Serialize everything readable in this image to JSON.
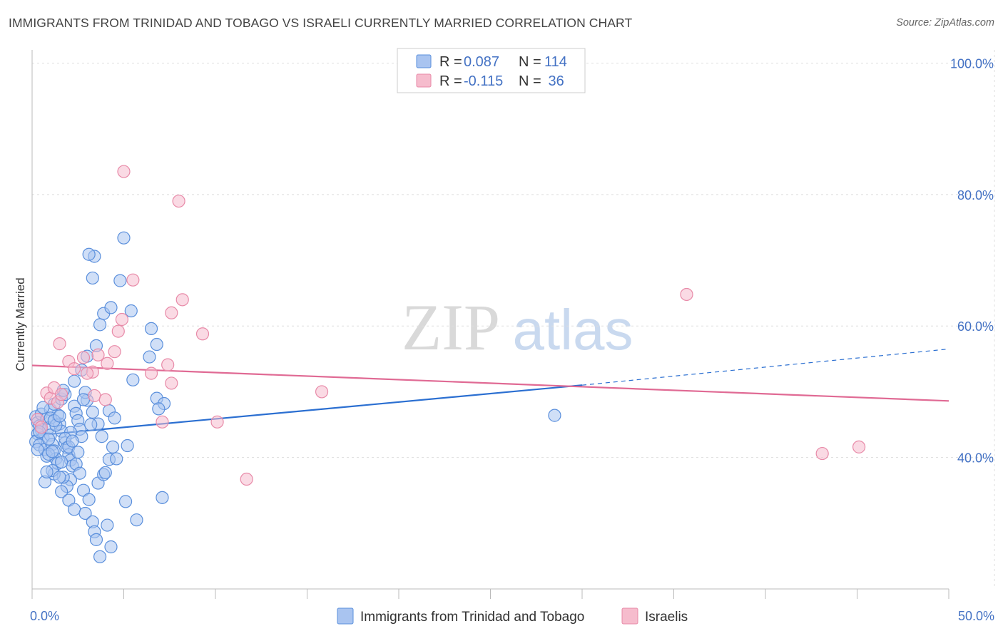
{
  "title": "IMMIGRANTS FROM TRINIDAD AND TOBAGO VS ISRAELI CURRENTLY MARRIED CORRELATION CHART",
  "source": "Source: ZipAtlas.com",
  "watermark": {
    "zip": "ZIP",
    "atlas": "atlas"
  },
  "colors": {
    "blue_fill": "#a9c4f0",
    "blue_stroke": "#5a8fdc",
    "blue_line": "#2b6fd1",
    "pink_fill": "#f6bccd",
    "pink_stroke": "#e88aa8",
    "pink_line": "#e06a94",
    "grid": "#dddddd",
    "axis_text": "#4472c4"
  },
  "legend": {
    "blue": {
      "r_label": "R = ",
      "r_value": "0.087",
      "n_label": "N = ",
      "n_value": "114"
    },
    "pink": {
      "r_label": "R = ",
      "r_value": "-0.115",
      "n_label": "N = ",
      "n_value": " 36"
    }
  },
  "chart_data": {
    "type": "scatter",
    "xlabel": "",
    "ylabel": "Currently Married",
    "xlim": [
      0,
      50
    ],
    "ylim": [
      20,
      102
    ],
    "x_tick_labels": [
      "0.0%",
      "50.0%"
    ],
    "y_tick_values": [
      40,
      60,
      80,
      100
    ],
    "y_tick_labels": [
      "40.0%",
      "60.0%",
      "80.0%",
      "100.0%"
    ],
    "series": [
      {
        "name": "Immigrants from Trinidad and Tobago",
        "color": "blue",
        "trend": {
          "x0": 0,
          "y0": 43.3,
          "x1": 30,
          "y1": 51.0,
          "dashed_to_x": 50,
          "dashed_to_y": 56.5
        },
        "points": [
          [
            0.2,
            46.2
          ],
          [
            0.3,
            45.3
          ],
          [
            0.4,
            44.8
          ],
          [
            0.5,
            44.2
          ],
          [
            0.3,
            43.6
          ],
          [
            0.6,
            43.0
          ],
          [
            0.2,
            42.4
          ],
          [
            0.4,
            41.9
          ],
          [
            0.7,
            41.2
          ],
          [
            0.5,
            46.6
          ],
          [
            0.8,
            45.9
          ],
          [
            0.9,
            44.5
          ],
          [
            1.0,
            43.4
          ],
          [
            1.1,
            42.0
          ],
          [
            1.2,
            41.0
          ],
          [
            0.8,
            40.2
          ],
          [
            1.3,
            39.8
          ],
          [
            1.4,
            46.5
          ],
          [
            1.5,
            45.1
          ],
          [
            1.6,
            44.0
          ],
          [
            1.0,
            47.3
          ],
          [
            1.2,
            48.1
          ],
          [
            1.6,
            48.9
          ],
          [
            1.8,
            49.6
          ],
          [
            1.7,
            50.2
          ],
          [
            1.8,
            42.2
          ],
          [
            1.9,
            41.5
          ],
          [
            2.0,
            40.4
          ],
          [
            2.1,
            39.6
          ],
          [
            2.2,
            38.7
          ],
          [
            2.3,
            47.8
          ],
          [
            2.4,
            46.7
          ],
          [
            2.5,
            45.6
          ],
          [
            2.6,
            44.3
          ],
          [
            2.7,
            43.2
          ],
          [
            2.4,
            39.0
          ],
          [
            2.6,
            37.6
          ],
          [
            2.1,
            36.6
          ],
          [
            1.9,
            35.6
          ],
          [
            1.7,
            37.0
          ],
          [
            1.2,
            37.5
          ],
          [
            1.6,
            34.8
          ],
          [
            2.0,
            33.5
          ],
          [
            2.3,
            32.1
          ],
          [
            2.9,
            31.5
          ],
          [
            3.3,
            30.2
          ],
          [
            3.4,
            28.7
          ],
          [
            3.5,
            27.5
          ],
          [
            3.7,
            24.9
          ],
          [
            2.8,
            35.0
          ],
          [
            3.1,
            33.6
          ],
          [
            3.6,
            36.1
          ],
          [
            3.9,
            37.4
          ],
          [
            4.2,
            39.7
          ],
          [
            4.4,
            41.6
          ],
          [
            3.8,
            43.2
          ],
          [
            3.6,
            45.1
          ],
          [
            3.3,
            46.9
          ],
          [
            3.0,
            48.7
          ],
          [
            2.9,
            49.9
          ],
          [
            2.3,
            51.6
          ],
          [
            2.7,
            53.3
          ],
          [
            3.0,
            55.4
          ],
          [
            3.5,
            57.0
          ],
          [
            3.7,
            60.2
          ],
          [
            3.9,
            61.9
          ],
          [
            4.3,
            62.8
          ],
          [
            3.3,
            67.3
          ],
          [
            3.4,
            70.6
          ],
          [
            3.1,
            70.9
          ],
          [
            5.0,
            73.4
          ],
          [
            4.8,
            66.9
          ],
          [
            5.4,
            62.3
          ],
          [
            6.5,
            59.6
          ],
          [
            6.8,
            57.2
          ],
          [
            6.4,
            55.3
          ],
          [
            5.5,
            51.8
          ],
          [
            6.8,
            49.0
          ],
          [
            7.2,
            48.2
          ],
          [
            6.9,
            47.4
          ],
          [
            5.2,
            41.8
          ],
          [
            4.6,
            39.8
          ],
          [
            4.0,
            37.7
          ],
          [
            5.1,
            33.3
          ],
          [
            4.1,
            29.7
          ],
          [
            5.7,
            30.5
          ],
          [
            4.3,
            26.4
          ],
          [
            7.1,
            33.9
          ],
          [
            4.2,
            47.1
          ],
          [
            4.5,
            46.0
          ],
          [
            0.3,
            41.2
          ],
          [
            0.9,
            40.5
          ],
          [
            1.4,
            39.1
          ],
          [
            1.1,
            38.0
          ],
          [
            1.5,
            37.0
          ],
          [
            0.7,
            36.3
          ],
          [
            1.0,
            46.0
          ],
          [
            1.3,
            44.9
          ],
          [
            0.6,
            47.6
          ],
          [
            2.8,
            48.8
          ],
          [
            3.2,
            45.0
          ],
          [
            2.1,
            43.8
          ],
          [
            1.8,
            42.9
          ],
          [
            2.0,
            41.6
          ],
          [
            2.5,
            40.8
          ],
          [
            0.4,
            43.9
          ],
          [
            0.9,
            42.8
          ],
          [
            1.2,
            45.6
          ],
          [
            1.5,
            46.3
          ],
          [
            2.2,
            42.5
          ],
          [
            28.5,
            46.4
          ],
          [
            1.1,
            40.9
          ],
          [
            1.6,
            39.3
          ],
          [
            0.8,
            37.8
          ]
        ]
      },
      {
        "name": "Israelis",
        "color": "pink",
        "trend": {
          "x0": 0,
          "y0": 54.0,
          "x1": 50,
          "y1": 48.6
        },
        "points": [
          [
            0.3,
            45.8
          ],
          [
            0.5,
            44.6
          ],
          [
            0.8,
            49.8
          ],
          [
            1.0,
            49.0
          ],
          [
            1.4,
            48.4
          ],
          [
            1.2,
            50.6
          ],
          [
            1.6,
            49.6
          ],
          [
            1.5,
            57.3
          ],
          [
            2.0,
            54.6
          ],
          [
            2.3,
            53.5
          ],
          [
            2.8,
            55.2
          ],
          [
            3.3,
            53.0
          ],
          [
            3.0,
            52.8
          ],
          [
            3.6,
            55.6
          ],
          [
            4.1,
            54.3
          ],
          [
            3.4,
            49.4
          ],
          [
            4.0,
            48.8
          ],
          [
            4.5,
            56.1
          ],
          [
            4.7,
            59.2
          ],
          [
            4.9,
            61.0
          ],
          [
            5.5,
            67.0
          ],
          [
            5.0,
            83.5
          ],
          [
            7.6,
            62.0
          ],
          [
            8.2,
            64.0
          ],
          [
            8.0,
            79.0
          ],
          [
            9.3,
            58.8
          ],
          [
            7.4,
            54.1
          ],
          [
            7.6,
            51.3
          ],
          [
            6.5,
            52.8
          ],
          [
            7.1,
            45.4
          ],
          [
            10.1,
            45.4
          ],
          [
            11.7,
            36.7
          ],
          [
            15.8,
            50.0
          ],
          [
            35.7,
            64.8
          ],
          [
            43.1,
            40.6
          ],
          [
            45.1,
            41.6
          ]
        ]
      }
    ]
  }
}
